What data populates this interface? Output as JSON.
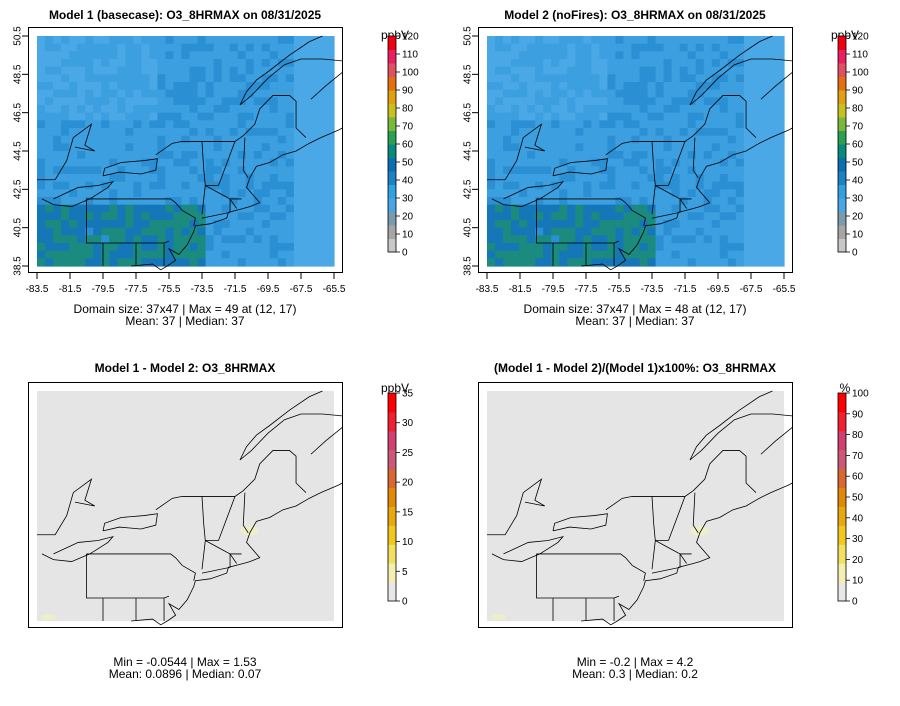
{
  "panels": [
    {
      "title": "Model 1 (basecase): O3_8HRMAX on 08/31/2025",
      "unit": "ppbV",
      "stats_line1": "Domain size: 37x47 | Max = 49 at (12, 17)",
      "stats_line2": "Mean: 37 |  Median: 37",
      "has_axes": true,
      "field": "model",
      "legend_ticks": [
        "0",
        "10",
        "20",
        "30",
        "40",
        "50",
        "60",
        "70",
        "80",
        "90",
        "100",
        "110",
        "120"
      ],
      "legend_palette": [
        "#c8c8c8",
        "#a6a6a6",
        "#7a9aae",
        "#48a6e6",
        "#30a0e0",
        "#1b82c4",
        "#0a6fb0",
        "#0a8a7a",
        "#2aa050",
        "#7ab83a",
        "#c8c020",
        "#e0a010",
        "#e07010",
        "#e05060",
        "#e82060",
        "#f00010"
      ]
    },
    {
      "title": "Model 2 (noFires): O3_8HRMAX on 08/31/2025",
      "unit": "ppbV",
      "stats_line1": "Domain size: 37x47 | Max = 48 at (12, 17)",
      "stats_line2": "Mean: 37 |  Median: 37",
      "has_axes": true,
      "field": "model",
      "legend_ticks": [
        "0",
        "10",
        "20",
        "30",
        "40",
        "50",
        "60",
        "70",
        "80",
        "90",
        "100",
        "110",
        "120"
      ],
      "legend_palette": [
        "#c8c8c8",
        "#a6a6a6",
        "#7a9aae",
        "#48a6e6",
        "#30a0e0",
        "#1b82c4",
        "#0a6fb0",
        "#0a8a7a",
        "#2aa050",
        "#7ab83a",
        "#c8c020",
        "#e0a010",
        "#e07010",
        "#e05060",
        "#e82060",
        "#f00010"
      ]
    },
    {
      "title": "Model 1 - Model 2: O3_8HRMAX",
      "unit": "ppbV",
      "stats_line1": "Min = -0.0544 | Max = 1.53",
      "stats_line2": "Mean: 0.0896 |  Median: 0.07",
      "has_axes": false,
      "field": "diff",
      "legend_ticks": [
        "0",
        "5",
        "10",
        "15",
        "20",
        "25",
        "30",
        "35"
      ],
      "legend_palette": [
        "#e8e8e8",
        "#f5f0b0",
        "#f2e060",
        "#f0c820",
        "#e8a810",
        "#e08808",
        "#d86830",
        "#cc5878",
        "#d04070",
        "#f02030",
        "#ff0000"
      ]
    },
    {
      "title": "(Model 1 - Model 2)/(Model 1)x100%: O3_8HRMAX",
      "unit": "%",
      "stats_line1": "Min = -0.2 | Max = 4.2",
      "stats_line2": "Mean: 0.3 |  Median: 0.2",
      "has_axes": false,
      "field": "diff",
      "legend_ticks": [
        "0",
        "10",
        "20",
        "30",
        "40",
        "50",
        "60",
        "70",
        "80",
        "90",
        "100"
      ],
      "legend_palette": [
        "#e8e8e8",
        "#f5f0b0",
        "#f2e060",
        "#f0c820",
        "#e8a810",
        "#e08808",
        "#d86830",
        "#cc5878",
        "#d04070",
        "#f02030",
        "#ff0000"
      ]
    }
  ],
  "chart_data": [
    {
      "type": "heatmap",
      "title": "Model 1 (basecase): O3_8HRMAX on 08/31/2025",
      "variable": "O3_8HRMAX",
      "unit": "ppbV",
      "domain_size": "37x47",
      "max": 49,
      "max_at": [
        12,
        17
      ],
      "mean": 37,
      "median": 37,
      "x_ticks": [
        "-83.5",
        "-81.5",
        "-79.5",
        "-77.5",
        "-75.5",
        "-73.5",
        "-71.5",
        "-69.5",
        "-67.5",
        "-65.5"
      ],
      "y_ticks": [
        "38.5",
        "40.5",
        "42.5",
        "44.5",
        "46.5",
        "48.5",
        "50.5"
      ],
      "xlim": [
        -83.5,
        -65.5
      ],
      "ylim": [
        38.5,
        50.5
      ],
      "color_range": [
        0,
        120
      ]
    },
    {
      "type": "heatmap",
      "title": "Model 2 (noFires): O3_8HRMAX on 08/31/2025",
      "variable": "O3_8HRMAX",
      "unit": "ppbV",
      "domain_size": "37x47",
      "max": 48,
      "max_at": [
        12,
        17
      ],
      "mean": 37,
      "median": 37,
      "x_ticks": [
        "-83.5",
        "-81.5",
        "-79.5",
        "-77.5",
        "-75.5",
        "-73.5",
        "-71.5",
        "-69.5",
        "-67.5",
        "-65.5"
      ],
      "y_ticks": [
        "38.5",
        "40.5",
        "42.5",
        "44.5",
        "46.5",
        "48.5",
        "50.5"
      ],
      "xlim": [
        -83.5,
        -65.5
      ],
      "ylim": [
        38.5,
        50.5
      ],
      "color_range": [
        0,
        120
      ]
    },
    {
      "type": "heatmap",
      "title": "Model 1 - Model 2: O3_8HRMAX",
      "unit": "ppbV",
      "min": -0.0544,
      "max": 1.53,
      "mean": 0.0896,
      "median": 0.07,
      "color_range": [
        0,
        35
      ]
    },
    {
      "type": "heatmap",
      "title": "(Model 1 - Model 2)/(Model 1)x100%: O3_8HRMAX",
      "unit": "%",
      "min": -0.2,
      "max": 4.2,
      "mean": 0.3,
      "median": 0.2,
      "color_range": [
        0,
        100
      ]
    }
  ]
}
